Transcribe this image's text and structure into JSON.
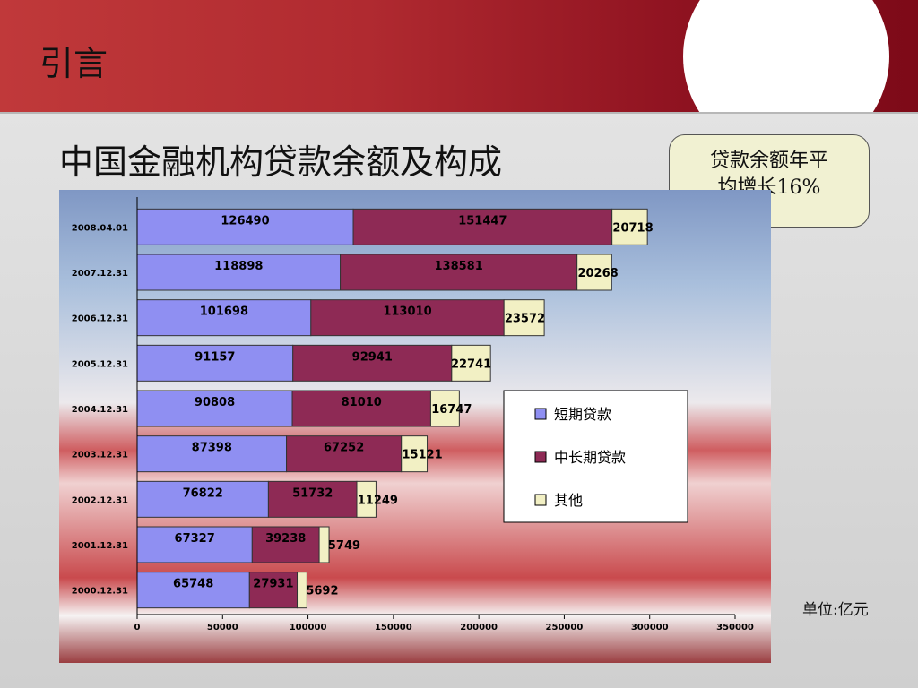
{
  "slide": {
    "title": "引言",
    "chart_heading": "中国金融机构贷款余额及构成",
    "callout_text": "贷款余额年平均增长16%",
    "unit_label": "单位:亿元"
  },
  "colors": {
    "banner_left": "#c0393a",
    "banner_right": "#7d0a18",
    "short_term": "#8f8ff2",
    "long_term": "#8e2a55",
    "other": "#f2f0c4"
  },
  "chart_data": {
    "type": "bar",
    "orientation": "horizontal",
    "stacked": true,
    "title": "",
    "xlabel": "",
    "ylabel": "",
    "categories": [
      "2008.04.01",
      "2007.12.31",
      "2006.12.31",
      "2005.12.31",
      "2004.12.31",
      "2003.12.31",
      "2002.12.31",
      "2001.12.31",
      "2000.12.31"
    ],
    "series": [
      {
        "name": "短期贷款",
        "color": "#8f8ff2",
        "values": [
          126490,
          118898,
          101698,
          91157,
          90808,
          87398,
          76822,
          67327,
          65748
        ]
      },
      {
        "name": "中长期贷款",
        "color": "#8e2a55",
        "values": [
          151447,
          138581,
          113010,
          92941,
          81010,
          67252,
          51732,
          39238,
          27931
        ]
      },
      {
        "name": "其他",
        "color": "#f2f0c4",
        "values": [
          20718,
          20268,
          23572,
          22741,
          16747,
          15121,
          11249,
          5749,
          5692
        ]
      }
    ],
    "xlim": [
      0,
      350000
    ],
    "xticks": [
      0,
      50000,
      100000,
      150000,
      200000,
      250000,
      300000,
      350000
    ],
    "grid": false,
    "legend_position": "right"
  }
}
